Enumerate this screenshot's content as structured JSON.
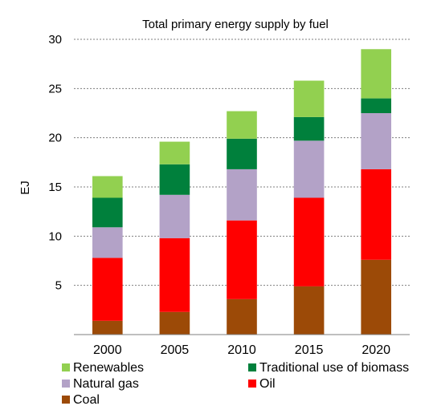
{
  "chart_data": {
    "type": "bar",
    "stacked": true,
    "title": "Total primary energy supply by fuel",
    "xlabel": "",
    "ylabel": "EJ",
    "ylim": [
      0,
      30
    ],
    "yticks": [
      5,
      10,
      15,
      20,
      25,
      30
    ],
    "grid": true,
    "legend_position": "bottom",
    "categories": [
      "2000",
      "2005",
      "2010",
      "2015",
      "2020"
    ],
    "series": [
      {
        "name": "Coal",
        "color": "#9c4a07",
        "values": [
          1.4,
          2.3,
          3.6,
          4.9,
          7.6
        ]
      },
      {
        "name": "Oil",
        "color": "#ff0000",
        "values": [
          6.4,
          7.5,
          8.0,
          9.0,
          9.2
        ]
      },
      {
        "name": "Natural gas",
        "color": "#b3a2c7",
        "values": [
          3.1,
          4.4,
          5.2,
          5.8,
          5.7
        ]
      },
      {
        "name": "Traditional use of biomass",
        "color": "#00803c",
        "values": [
          3.0,
          3.1,
          3.1,
          2.4,
          1.5
        ]
      },
      {
        "name": "Renewables",
        "color": "#92d050",
        "values": [
          2.2,
          2.3,
          2.8,
          3.7,
          5.0
        ]
      }
    ],
    "legend_order": [
      "Renewables",
      "Traditional use of biomass",
      "Natural gas",
      "Oil",
      "Coal"
    ]
  }
}
